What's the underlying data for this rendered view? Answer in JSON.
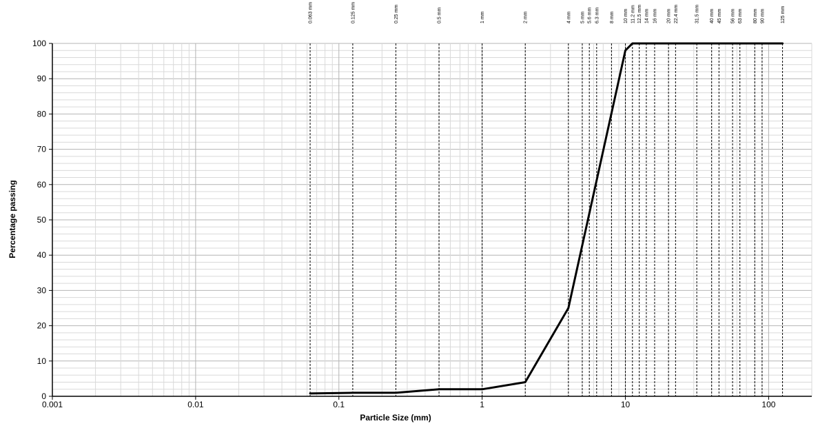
{
  "chart_data": {
    "type": "line",
    "xlabel": "Particle Size (mm)",
    "ylabel": "Percentage passing",
    "x_scale": "log",
    "xlim": [
      0.001,
      200
    ],
    "ylim": [
      0,
      100
    ],
    "x_ticks": [
      {
        "value": 0.001,
        "label": "0.001"
      },
      {
        "value": 0.01,
        "label": "0.01"
      },
      {
        "value": 0.1,
        "label": "0.1"
      },
      {
        "value": 1,
        "label": "1"
      },
      {
        "value": 10,
        "label": "10"
      },
      {
        "value": 100,
        "label": "100"
      }
    ],
    "y_ticks": [
      0,
      10,
      20,
      30,
      40,
      50,
      60,
      70,
      80,
      90,
      100
    ],
    "y_minor_step": 2,
    "grid": true,
    "sieves": [
      {
        "size": 0.063,
        "label": "0.063 mm"
      },
      {
        "size": 0.125,
        "label": "0.125 mm"
      },
      {
        "size": 0.25,
        "label": "0.25 mm"
      },
      {
        "size": 0.5,
        "label": "0.5 mm"
      },
      {
        "size": 1,
        "label": "1 mm"
      },
      {
        "size": 2,
        "label": "2 mm"
      },
      {
        "size": 4,
        "label": "4 mm"
      },
      {
        "size": 5,
        "label": "5 mm"
      },
      {
        "size": 5.6,
        "label": "5.6 mm"
      },
      {
        "size": 6.3,
        "label": "6.3 mm"
      },
      {
        "size": 8,
        "label": "8 mm"
      },
      {
        "size": 10,
        "label": "10 mm"
      },
      {
        "size": 11.2,
        "label": "11.2 mm"
      },
      {
        "size": 12.5,
        "label": "12.5 mm"
      },
      {
        "size": 14,
        "label": "14 mm"
      },
      {
        "size": 16,
        "label": "16 mm"
      },
      {
        "size": 20,
        "label": "20 mm"
      },
      {
        "size": 22.4,
        "label": "22.4 mm"
      },
      {
        "size": 31.5,
        "label": "31.5 mm"
      },
      {
        "size": 40,
        "label": "40 mm"
      },
      {
        "size": 45,
        "label": "45 mm"
      },
      {
        "size": 56,
        "label": "56 mm"
      },
      {
        "size": 63,
        "label": "63 mm"
      },
      {
        "size": 80,
        "label": "80 mm"
      },
      {
        "size": 90,
        "label": "90 mm"
      },
      {
        "size": 125,
        "label": "125 mm"
      }
    ],
    "series": [
      {
        "x": [
          0.063,
          0.125,
          0.25,
          0.5,
          1,
          2,
          4,
          10,
          11.2,
          12.5,
          14,
          16,
          20,
          22.4,
          31.5,
          40,
          45,
          56,
          63,
          80,
          90,
          125
        ],
        "y": [
          0.8,
          1,
          1,
          2,
          2,
          4,
          25,
          98,
          100,
          100,
          100,
          100,
          100,
          100,
          100,
          100,
          100,
          100,
          100,
          100,
          100,
          100
        ]
      }
    ],
    "colors": {
      "major_grid": "#b4b4b4",
      "minor_grid": "#d9d9d9",
      "sieve_line": "#000000",
      "curve": "#000000"
    }
  }
}
